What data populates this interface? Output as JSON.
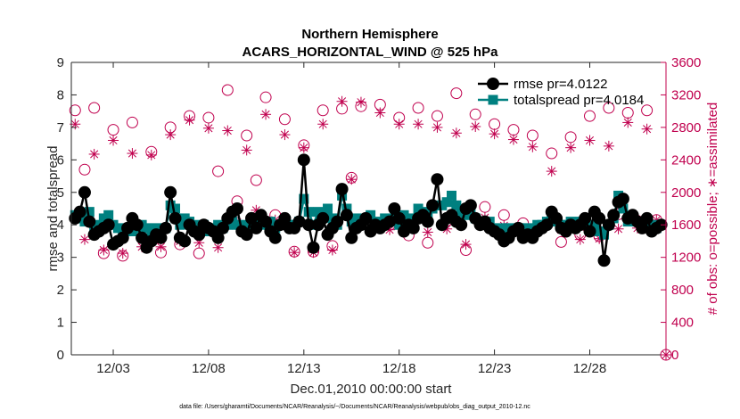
{
  "chart_data": {
    "type": "line",
    "title": [
      "Northern Hemisphere",
      "ACARS_HORIZONTAL_WIND @ 525 hPa"
    ],
    "xlabel": "Dec.01,2010 00:00:00 start",
    "ylabel": "rmse and totalspread",
    "ylabel_right": "# of obs: o=possible; ∗=assimilated",
    "footnote": "data file: /Users/gharamti/Documents/NCAR/Reanalysis/~/Documents/NCAR/Reanalysis/webpub/obs_diag_output_2010-12.nc",
    "xlim": [
      0.8,
      32.0
    ],
    "x_ticks": [
      3,
      8,
      13,
      18,
      23,
      28
    ],
    "x_tick_labels": [
      "12/03",
      "12/08",
      "12/13",
      "12/18",
      "12/23",
      "12/28"
    ],
    "ylim": [
      0,
      9
    ],
    "y_ticks": [
      0,
      1,
      2,
      3,
      4,
      5,
      6,
      7,
      8,
      9
    ],
    "ylim_right": [
      0,
      3600
    ],
    "y_ticks_right": [
      0,
      400,
      800,
      1200,
      1600,
      2000,
      2400,
      2800,
      3200,
      3600
    ],
    "colors": {
      "rmse": "#000000",
      "totalspread": "#008080",
      "obs": "#c0004e",
      "axis": "#262626"
    },
    "legend": [
      {
        "label": "rmse pr=4.0122"
      },
      {
        "label": "totalspread pr=4.0184"
      }
    ],
    "series": [
      {
        "name": "rmse",
        "x": [
          1.0,
          1.25,
          1.5,
          1.75,
          2.0,
          2.25,
          2.5,
          2.75,
          3.0,
          3.25,
          3.5,
          3.75,
          4.0,
          4.25,
          4.5,
          4.75,
          5.0,
          5.25,
          5.5,
          5.75,
          6.0,
          6.25,
          6.5,
          6.75,
          7.0,
          7.25,
          7.5,
          7.75,
          8.0,
          8.25,
          8.5,
          8.75,
          9.0,
          9.25,
          9.5,
          9.75,
          10.0,
          10.25,
          10.5,
          10.75,
          11.0,
          11.25,
          11.5,
          11.75,
          12.0,
          12.25,
          12.5,
          12.75,
          13.0,
          13.25,
          13.5,
          13.75,
          14.0,
          14.25,
          14.5,
          14.75,
          15.0,
          15.25,
          15.5,
          15.75,
          16.0,
          16.25,
          16.5,
          16.75,
          17.0,
          17.25,
          17.5,
          17.75,
          18.0,
          18.25,
          18.5,
          18.75,
          19.0,
          19.25,
          19.5,
          19.75,
          20.0,
          20.25,
          20.5,
          20.75,
          21.0,
          21.25,
          21.5,
          21.75,
          22.0,
          22.25,
          22.5,
          22.75,
          23.0,
          23.25,
          23.5,
          23.75,
          24.0,
          24.25,
          24.5,
          24.75,
          25.0,
          25.25,
          25.5,
          25.75,
          26.0,
          26.25,
          26.5,
          26.75,
          27.0,
          27.25,
          27.5,
          27.75,
          28.0,
          28.25,
          28.5,
          28.75,
          29.0,
          29.25,
          29.5,
          29.75,
          30.0,
          30.25,
          30.5,
          30.75,
          31.0,
          31.25,
          31.5,
          31.75
        ],
        "values": [
          4.2,
          4.4,
          5.0,
          4.1,
          3.7,
          3.8,
          3.9,
          4.0,
          3.4,
          3.5,
          3.6,
          3.9,
          4.2,
          4.0,
          3.6,
          3.3,
          3.5,
          3.7,
          3.6,
          3.9,
          5.0,
          4.2,
          3.6,
          3.5,
          4.0,
          3.8,
          3.7,
          4.0,
          3.9,
          3.8,
          3.6,
          3.9,
          4.2,
          4.4,
          4.5,
          3.8,
          3.7,
          4.2,
          3.9,
          4.3,
          4.1,
          3.8,
          3.6,
          4.0,
          4.2,
          3.9,
          3.9,
          4.1,
          6.0,
          4.0,
          3.3,
          4.0,
          4.2,
          3.7,
          3.9,
          4.1,
          5.1,
          4.3,
          3.6,
          3.9,
          4.0,
          4.2,
          3.8,
          4.0,
          3.9,
          4.0,
          4.1,
          4.5,
          4.2,
          3.8,
          4.0,
          3.9,
          4.2,
          4.3,
          4.1,
          4.6,
          5.4,
          4.0,
          4.2,
          4.3,
          4.1,
          4.0,
          4.5,
          4.6,
          4.2,
          4.0,
          4.1,
          3.9,
          3.8,
          3.7,
          3.5,
          3.6,
          3.8,
          3.9,
          3.6,
          3.7,
          3.6,
          3.8,
          3.9,
          4.0,
          4.4,
          4.2,
          3.9,
          3.8,
          4.0,
          3.9,
          4.0,
          4.2,
          3.8,
          4.4,
          4.2,
          2.9,
          4.0,
          4.3,
          4.7,
          4.8,
          4.2,
          4.3,
          4.1,
          3.9,
          4.2,
          3.8,
          3.9,
          4.0
        ]
      },
      {
        "name": "totalspread",
        "x": [
          1.0,
          1.25,
          1.5,
          1.75,
          2.0,
          2.25,
          2.5,
          2.75,
          3.0,
          3.25,
          3.5,
          3.75,
          4.0,
          4.25,
          4.5,
          4.75,
          5.0,
          5.25,
          5.5,
          5.75,
          6.0,
          6.25,
          6.5,
          6.75,
          7.0,
          7.25,
          7.5,
          7.75,
          8.0,
          8.25,
          8.5,
          8.75,
          9.0,
          9.25,
          9.5,
          9.75,
          10.0,
          10.25,
          10.5,
          10.75,
          11.0,
          11.25,
          11.5,
          11.75,
          12.0,
          12.25,
          12.5,
          12.75,
          13.0,
          13.25,
          13.5,
          13.75,
          14.0,
          14.25,
          14.5,
          14.75,
          15.0,
          15.25,
          15.5,
          15.75,
          16.0,
          16.25,
          16.5,
          16.75,
          17.0,
          17.25,
          17.5,
          17.75,
          18.0,
          18.25,
          18.5,
          18.75,
          19.0,
          19.25,
          19.5,
          19.75,
          20.0,
          20.25,
          20.5,
          20.75,
          21.0,
          21.25,
          21.5,
          21.75,
          22.0,
          22.25,
          22.5,
          22.75,
          23.0,
          23.25,
          23.5,
          23.75,
          24.0,
          24.25,
          24.5,
          24.75,
          25.0,
          25.25,
          25.5,
          25.75,
          26.0,
          26.25,
          26.5,
          26.75,
          27.0,
          27.25,
          27.5,
          27.75,
          28.0,
          28.25,
          28.5,
          28.75,
          29.0,
          29.25,
          29.5,
          29.75,
          30.0,
          30.25,
          30.5,
          30.75,
          31.0,
          31.25,
          31.5,
          31.75
        ],
        "values": [
          4.3,
          4.2,
          4.1,
          4.4,
          3.9,
          4.0,
          4.2,
          4.3,
          4.0,
          3.9,
          3.8,
          3.9,
          3.8,
          3.9,
          4.0,
          3.9,
          3.8,
          3.9,
          3.8,
          3.9,
          4.6,
          4.5,
          4.0,
          4.2,
          4.1,
          4.0,
          3.9,
          4.0,
          3.8,
          3.9,
          4.0,
          3.9,
          4.0,
          4.1,
          4.0,
          4.0,
          3.9,
          4.0,
          4.2,
          4.1,
          4.0,
          4.1,
          3.9,
          4.0,
          4.1,
          4.0,
          4.0,
          4.1,
          4.8,
          4.4,
          4.0,
          4.4,
          4.3,
          4.5,
          4.2,
          4.0,
          4.9,
          4.5,
          4.1,
          4.2,
          4.0,
          4.2,
          4.3,
          4.1,
          4.0,
          4.2,
          4.1,
          4.2,
          4.0,
          4.3,
          4.1,
          4.2,
          4.5,
          4.4,
          4.2,
          4.5,
          4.6,
          4.6,
          4.7,
          4.9,
          4.6,
          4.4,
          4.3,
          4.4,
          4.2,
          4.1,
          4.0,
          4.1,
          3.9,
          3.8,
          3.9,
          3.9,
          3.8,
          3.9,
          3.9,
          3.8,
          3.9,
          4.0,
          4.0,
          4.1,
          4.2,
          4.1,
          4.0,
          4.0,
          4.1,
          4.0,
          4.1,
          4.1,
          3.9,
          4.0,
          3.8,
          3.7,
          4.0,
          4.2,
          4.9,
          4.5,
          4.1,
          4.2,
          4.1,
          4.0,
          4.1,
          4.0,
          3.9,
          4.0
        ]
      },
      {
        "name": "obs possible",
        "x": [
          1,
          1.5,
          2,
          2.5,
          3,
          3.5,
          4,
          4.5,
          5,
          5.5,
          6,
          6.5,
          7,
          7.5,
          8,
          8.5,
          9,
          9.5,
          10,
          10.5,
          11,
          11.5,
          12,
          12.5,
          13,
          13.5,
          14,
          14.5,
          15,
          15.5,
          16,
          16.5,
          17,
          17.5,
          18,
          18.5,
          19,
          19.5,
          20,
          20.5,
          21,
          21.5,
          22,
          22.5,
          23,
          23.5,
          24,
          24.5,
          25,
          25.5,
          26,
          26.5,
          27,
          27.5,
          28,
          28.5,
          29,
          29.5,
          30,
          30.5,
          31,
          31.5,
          32
        ],
        "values": [
          3010,
          2280,
          3040,
          1250,
          2770,
          1220,
          2860,
          1560,
          2500,
          1260,
          2800,
          1360,
          2940,
          1250,
          2920,
          2260,
          3260,
          1890,
          2700,
          2150,
          3170,
          1720,
          2900,
          1270,
          2580,
          1270,
          3010,
          1340,
          3030,
          2180,
          3060,
          1570,
          3080,
          1600,
          2920,
          1470,
          3040,
          1380,
          2940,
          1650,
          3220,
          1290,
          2960,
          1820,
          2840,
          1720,
          2770,
          1620,
          2700,
          1560,
          2480,
          1390,
          2680,
          1480,
          2940,
          1460,
          3040,
          1730,
          2980,
          1650,
          3010,
          1660,
          0
        ]
      },
      {
        "name": "obs assimilated",
        "x": [
          1,
          1.5,
          2,
          2.5,
          3,
          3.5,
          4,
          4.5,
          5,
          5.5,
          6,
          6.5,
          7,
          7.5,
          8,
          8.5,
          9,
          9.5,
          10,
          10.5,
          11,
          11.5,
          12,
          12.5,
          13,
          13.5,
          14,
          14.5,
          15,
          15.5,
          16,
          16.5,
          17,
          17.5,
          18,
          18.5,
          19,
          19.5,
          20,
          20.5,
          21,
          21.5,
          22,
          22.5,
          23,
          23.5,
          24,
          24.5,
          25,
          25.5,
          26,
          26.5,
          27,
          27.5,
          28,
          28.5,
          29,
          29.5,
          30,
          30.5,
          31,
          31.5,
          32
        ],
        "values": [
          2840,
          1420,
          2470,
          1290,
          2640,
          1250,
          2480,
          1330,
          2460,
          1330,
          2710,
          1400,
          2890,
          1380,
          2790,
          1320,
          2760,
          1630,
          2520,
          1780,
          2960,
          1660,
          2710,
          1260,
          2550,
          1260,
          2840,
          1290,
          3120,
          2160,
          3110,
          1530,
          2980,
          1540,
          2840,
          1540,
          2840,
          1510,
          2800,
          1550,
          2730,
          1360,
          2810,
          1690,
          2720,
          1590,
          2650,
          1550,
          2560,
          1550,
          2260,
          1540,
          2550,
          1420,
          2640,
          1430,
          2570,
          1550,
          2860,
          1560,
          2780,
          1660,
          0
        ]
      }
    ]
  }
}
